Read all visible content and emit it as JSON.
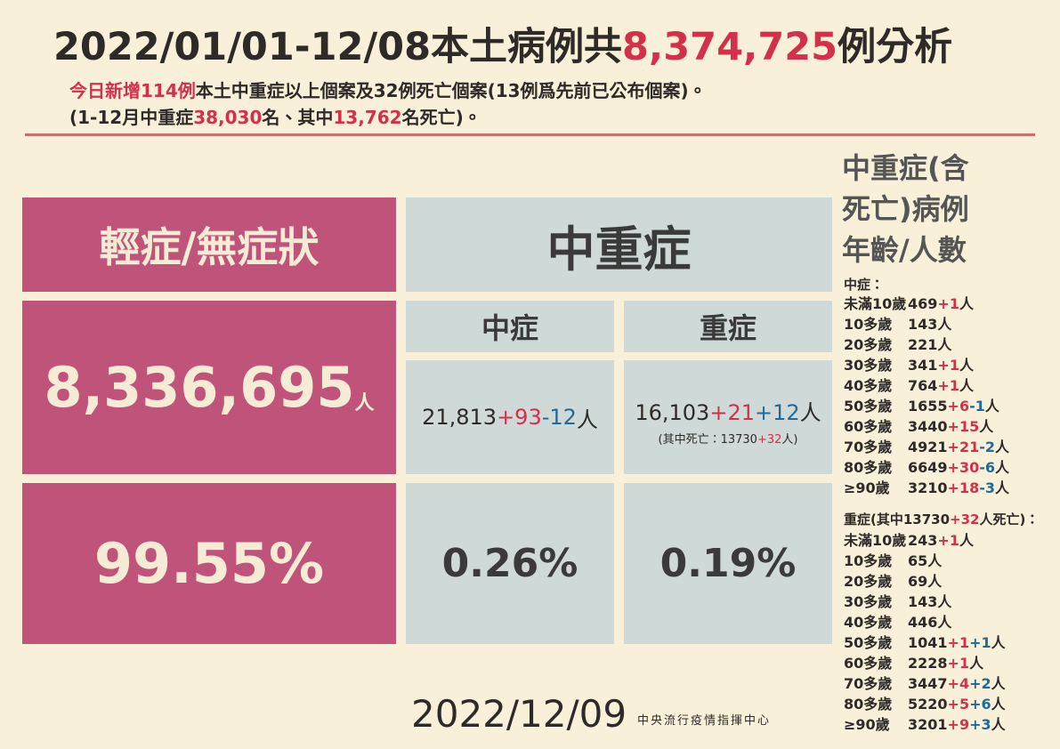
{
  "header": {
    "title": [
      {
        "text": "2022/01/01-12/08本土病例共",
        "tone": "dark"
      },
      {
        "text": "8,374,725",
        "tone": "red"
      },
      {
        "text": "例分析",
        "tone": "dark"
      }
    ],
    "line1": [
      {
        "text": "今日新增114例",
        "tone": "red"
      },
      {
        "text": "本土中重症以上個案及32例死亡個案(13例爲先前已公布個案)。",
        "tone": "dark"
      }
    ],
    "line2": [
      {
        "text": "(1-12月中重症",
        "tone": "dark"
      },
      {
        "text": "38,030",
        "tone": "red"
      },
      {
        "text": "名、其中",
        "tone": "dark"
      },
      {
        "text": "13,762",
        "tone": "red"
      },
      {
        "text": "名死亡)。",
        "tone": "dark"
      }
    ]
  },
  "mild": {
    "title": "輕症/無症狀",
    "count": "8,336,695",
    "unit": "人",
    "percent": "99.55%"
  },
  "severe": {
    "title": "中重症",
    "moderate": {
      "title": "中症",
      "count": [
        {
          "text": "21,813",
          "tone": "dark"
        },
        {
          "text": "+93",
          "tone": "red"
        },
        {
          "text": "-12",
          "tone": "blue"
        },
        {
          "text": " 人",
          "tone": "dark"
        }
      ],
      "percent": "0.26%"
    },
    "critical": {
      "title": "重症",
      "count": [
        {
          "text": "16,103",
          "tone": "dark"
        },
        {
          "text": "+21",
          "tone": "red"
        },
        {
          "text": "+12",
          "tone": "blue"
        },
        {
          "text": "人",
          "tone": "dark"
        }
      ],
      "note": [
        {
          "text": "(其中死亡：13730",
          "tone": "dark"
        },
        {
          "text": "+32",
          "tone": "red"
        },
        {
          "text": "人)",
          "tone": "dark"
        }
      ],
      "percent": "0.19%"
    }
  },
  "ages": {
    "title": [
      "中重症(含",
      "死亡)病例",
      "年齡/人數"
    ],
    "moderate_label": [
      {
        "text": "中症：",
        "tone": "dark"
      }
    ],
    "moderate": [
      {
        "age": "未滿10歲",
        "parts": [
          {
            "text": "469",
            "tone": "dark"
          },
          {
            "text": "+1",
            "tone": "red"
          },
          {
            "text": "人",
            "tone": "dark"
          }
        ]
      },
      {
        "age": "10多歲",
        "parts": [
          {
            "text": "143人",
            "tone": "dark"
          }
        ]
      },
      {
        "age": "20多歲",
        "parts": [
          {
            "text": "221人",
            "tone": "dark"
          }
        ]
      },
      {
        "age": "30多歲",
        "parts": [
          {
            "text": "341",
            "tone": "dark"
          },
          {
            "text": "+1",
            "tone": "red"
          },
          {
            "text": "人",
            "tone": "dark"
          }
        ]
      },
      {
        "age": "40多歲",
        "parts": [
          {
            "text": "764",
            "tone": "dark"
          },
          {
            "text": "+1",
            "tone": "red"
          },
          {
            "text": "人",
            "tone": "dark"
          }
        ]
      },
      {
        "age": "50多歲",
        "parts": [
          {
            "text": "1655",
            "tone": "dark"
          },
          {
            "text": "+6",
            "tone": "red"
          },
          {
            "text": "-1",
            "tone": "blue"
          },
          {
            "text": "人",
            "tone": "dark"
          }
        ]
      },
      {
        "age": "60多歲",
        "parts": [
          {
            "text": "3440",
            "tone": "dark"
          },
          {
            "text": "+15",
            "tone": "red"
          },
          {
            "text": "人",
            "tone": "dark"
          }
        ]
      },
      {
        "age": "70多歲",
        "parts": [
          {
            "text": "4921",
            "tone": "dark"
          },
          {
            "text": "+21",
            "tone": "red"
          },
          {
            "text": "-2",
            "tone": "blue"
          },
          {
            "text": "人",
            "tone": "dark"
          }
        ]
      },
      {
        "age": "80多歲",
        "parts": [
          {
            "text": "6649",
            "tone": "dark"
          },
          {
            "text": "+30",
            "tone": "red"
          },
          {
            "text": "-6",
            "tone": "blue"
          },
          {
            "text": "人",
            "tone": "dark"
          }
        ]
      },
      {
        "age": "≥90歲",
        "parts": [
          {
            "text": "3210",
            "tone": "dark"
          },
          {
            "text": "+18",
            "tone": "red"
          },
          {
            "text": "-3",
            "tone": "blue"
          },
          {
            "text": "人",
            "tone": "dark"
          }
        ]
      }
    ],
    "critical_label": [
      {
        "text": "重症(其中13730",
        "tone": "dark"
      },
      {
        "text": "+32",
        "tone": "red"
      },
      {
        "text": "人死亡)：",
        "tone": "dark"
      }
    ],
    "critical": [
      {
        "age": "未滿10歲",
        "parts": [
          {
            "text": "243",
            "tone": "dark"
          },
          {
            "text": "+1",
            "tone": "red"
          },
          {
            "text": "人",
            "tone": "dark"
          }
        ]
      },
      {
        "age": "10多歲",
        "parts": [
          {
            "text": "65人",
            "tone": "dark"
          }
        ]
      },
      {
        "age": "20多歲",
        "parts": [
          {
            "text": "69人",
            "tone": "dark"
          }
        ]
      },
      {
        "age": "30多歲",
        "parts": [
          {
            "text": "143人",
            "tone": "dark"
          }
        ]
      },
      {
        "age": "40多歲",
        "parts": [
          {
            "text": "446人",
            "tone": "dark"
          }
        ]
      },
      {
        "age": "50多歲",
        "parts": [
          {
            "text": "1041",
            "tone": "dark"
          },
          {
            "text": "+1",
            "tone": "red"
          },
          {
            "text": "+1",
            "tone": "blue"
          },
          {
            "text": "人",
            "tone": "dark"
          }
        ]
      },
      {
        "age": "60多歲",
        "parts": [
          {
            "text": "2228",
            "tone": "dark"
          },
          {
            "text": "+1",
            "tone": "red"
          },
          {
            "text": "人",
            "tone": "dark"
          }
        ]
      },
      {
        "age": "70多歲",
        "parts": [
          {
            "text": "3447",
            "tone": "dark"
          },
          {
            "text": "+4",
            "tone": "red"
          },
          {
            "text": "+2",
            "tone": "blue"
          },
          {
            "text": "人",
            "tone": "dark"
          }
        ]
      },
      {
        "age": "80多歲",
        "parts": [
          {
            "text": "5220",
            "tone": "dark"
          },
          {
            "text": "+5",
            "tone": "red"
          },
          {
            "text": "+6",
            "tone": "blue"
          },
          {
            "text": "人",
            "tone": "dark"
          }
        ]
      },
      {
        "age": "≥90歲",
        "parts": [
          {
            "text": "3201",
            "tone": "dark"
          },
          {
            "text": "+9",
            "tone": "red"
          },
          {
            "text": "+3",
            "tone": "blue"
          },
          {
            "text": "人",
            "tone": "dark"
          }
        ]
      }
    ]
  },
  "footer": {
    "date": "2022/12/09",
    "org": "中央流行疫情指揮中心"
  }
}
